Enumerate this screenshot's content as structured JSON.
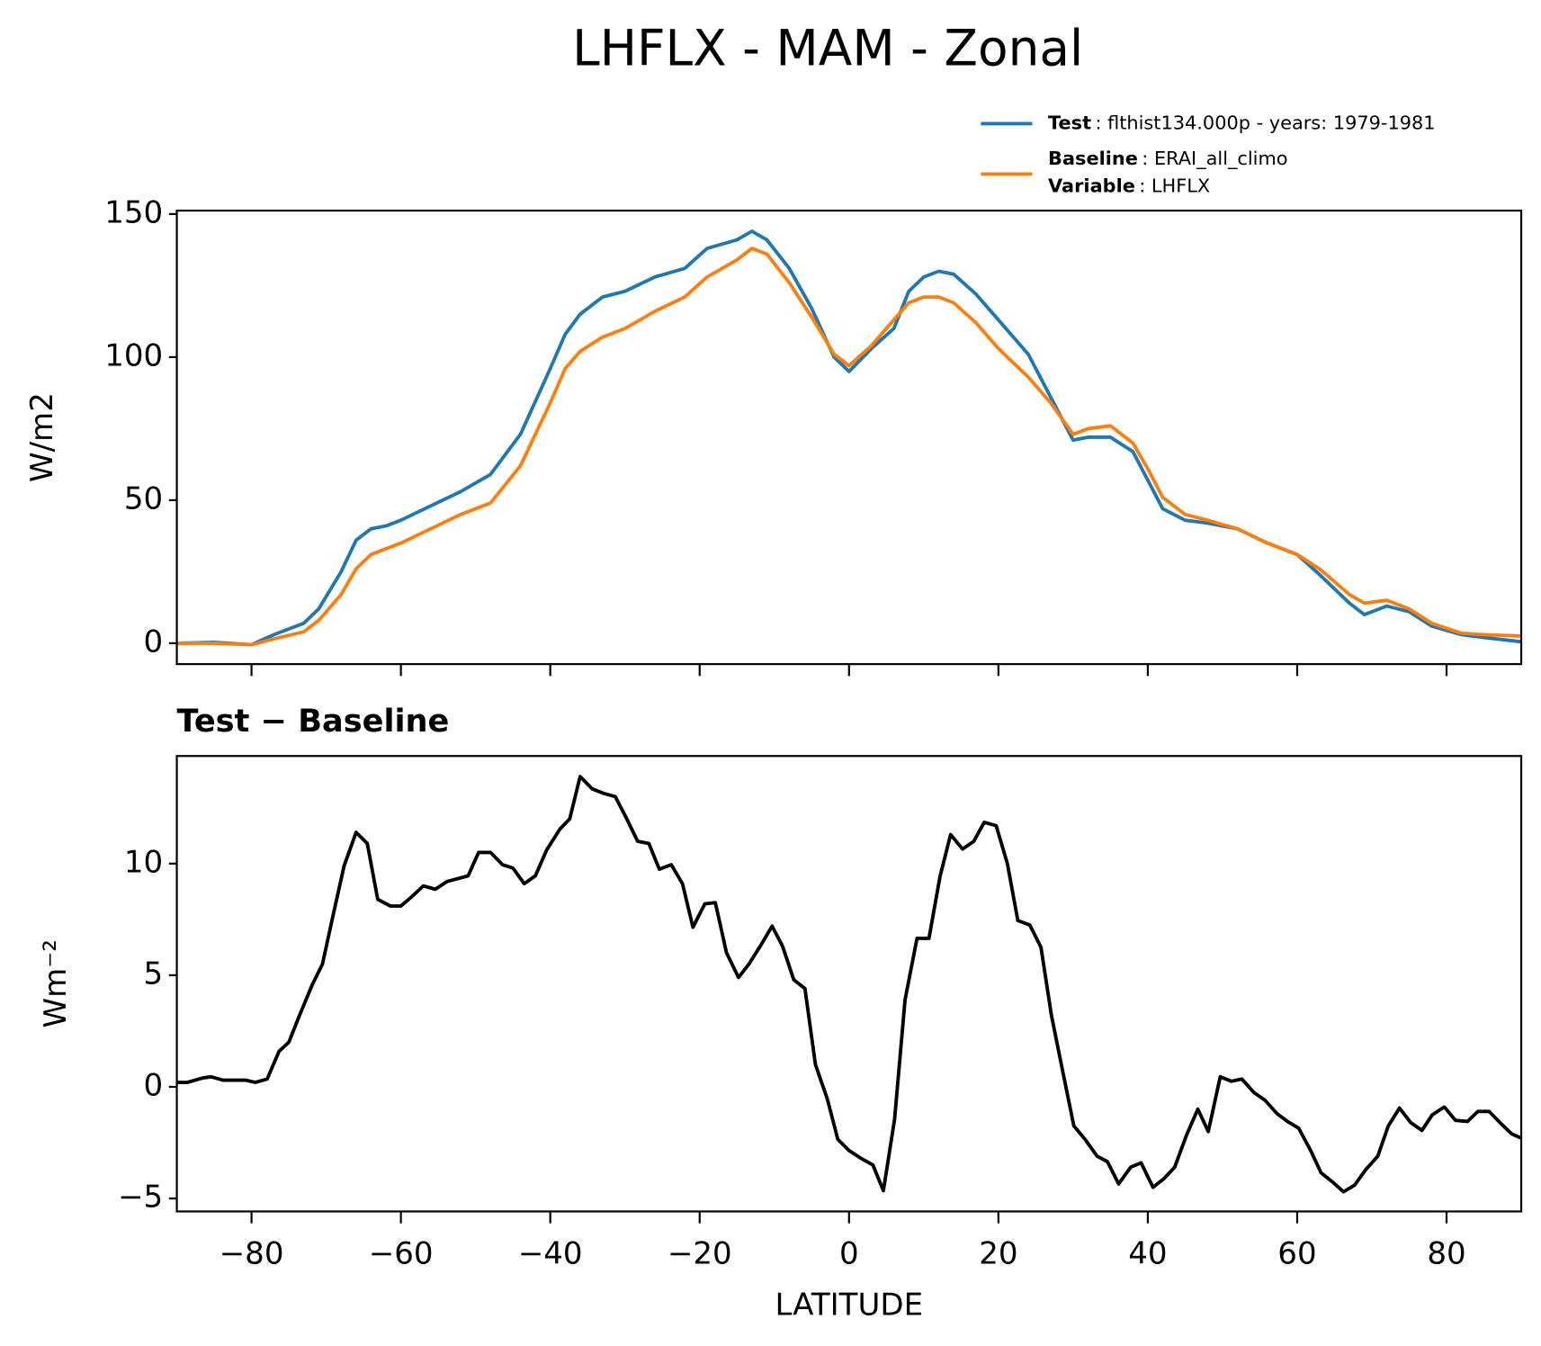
{
  "title": "LHFLX - MAM - Zonal",
  "chart_data": [
    {
      "type": "line",
      "ylabel": "W/m2",
      "x": [
        -90,
        -85,
        -80,
        -77,
        -73,
        -71,
        -68,
        -66,
        -64,
        -62,
        -60,
        -56,
        -52,
        -48,
        -44,
        -40,
        -38,
        -36,
        -33,
        -30,
        -26,
        -22,
        -19,
        -15,
        -13,
        -11,
        -8,
        -5,
        -2,
        0,
        3,
        6,
        8,
        10,
        12,
        14,
        17,
        20,
        24,
        27,
        30,
        32,
        35,
        38,
        40,
        42,
        45,
        48,
        52,
        56,
        60,
        63,
        67,
        69,
        72,
        75,
        78,
        82,
        85,
        90
      ],
      "series": [
        {
          "name": "Test",
          "description": ": flthist134.000p - years: 1979-1981",
          "color": "#1f77b4",
          "values": [
            0,
            0.3,
            -0.5,
            3,
            7,
            12,
            25,
            36,
            40,
            41,
            43,
            48,
            53,
            59,
            73,
            96,
            108,
            115,
            121,
            123,
            128,
            131,
            138,
            141,
            144,
            141,
            131,
            117,
            100,
            95,
            103,
            110,
            123,
            128,
            130,
            129,
            122,
            113,
            101,
            86,
            71,
            72,
            72,
            67,
            57,
            47,
            43,
            42,
            40,
            35,
            31,
            24,
            14,
            10,
            13,
            11,
            6,
            3,
            2,
            0.5
          ]
        },
        {
          "name": "Baseline",
          "description": ": ERAI_all_climo",
          "color": "#ff7f0e",
          "values": [
            0,
            0,
            -0.5,
            1.5,
            4,
            8,
            17,
            26,
            31,
            33,
            35,
            40,
            45,
            49,
            62,
            84,
            96,
            102,
            107,
            110,
            116,
            121,
            128,
            134,
            138,
            136,
            126,
            114,
            101,
            97,
            104,
            113,
            119,
            121,
            121,
            119,
            112,
            103,
            93,
            84,
            73,
            75,
            76,
            70,
            61,
            51,
            45,
            43,
            40,
            35,
            31,
            26,
            17,
            14,
            15,
            12,
            7,
            3.5,
            3,
            2.5
          ]
        }
      ],
      "variable": {
        "name": "Variable",
        "description": ": LHFLX"
      },
      "xlim": [
        -90,
        90
      ],
      "xticks": [
        -80,
        -60,
        -40,
        -20,
        0,
        20,
        40,
        60,
        80
      ],
      "ylim": [
        -7.3,
        151.2
      ],
      "yticks": [
        0,
        50,
        100,
        150
      ]
    },
    {
      "type": "line",
      "title": "Test − Baseline",
      "ylabel": "Wm⁻²",
      "xlabel": "LATITUDE",
      "x": [
        -90,
        -88.6,
        -86.5,
        -85.4,
        -83.8,
        -80.8,
        -79.5,
        -77.9,
        -76.3,
        -75,
        -73.7,
        -71.9,
        -70.5,
        -69,
        -67.6,
        -66,
        -64.5,
        -63.1,
        -61.4,
        -60,
        -58.6,
        -57,
        -55.4,
        -53.8,
        -51,
        -49.6,
        -48,
        -46.4,
        -45,
        -43.5,
        -42,
        -40.5,
        -38.7,
        -37.4,
        -36,
        -34.4,
        -32.9,
        -31.3,
        -29.9,
        -28.3,
        -26.8,
        -25.4,
        -23.8,
        -22.3,
        -20.9,
        -19.3,
        -17.9,
        -16.4,
        -14.8,
        -13.4,
        -11.8,
        -10.3,
        -8.9,
        -7.4,
        -5.9,
        -4.5,
        -2.9,
        -1.5,
        0,
        1.6,
        3.2,
        4.6,
        6.1,
        7.5,
        9.1,
        10.7,
        12.2,
        13.6,
        15.2,
        16.7,
        18.1,
        19.7,
        21.2,
        22.6,
        24.2,
        25.7,
        27.1,
        28.7,
        30.1,
        31.6,
        33.2,
        34.6,
        36.1,
        37.7,
        39.1,
        40.7,
        42.2,
        43.6,
        45.2,
        46.7,
        48.1,
        49.7,
        51.2,
        52.6,
        54.2,
        55.7,
        57.3,
        58.7,
        60.2,
        61.8,
        63.2,
        64.7,
        66.2,
        67.7,
        69.2,
        70.8,
        72.2,
        73.7,
        75.2,
        76.7,
        78.1,
        79.7,
        81.2,
        82.8,
        84.2,
        85.7,
        87.3,
        88.7,
        90
      ],
      "series": [
        {
          "name": "Test − Baseline",
          "color": "#000000",
          "values": [
            0.2,
            0.2,
            0.4,
            0.45,
            0.3,
            0.3,
            0.2,
            0.35,
            1.6,
            2.0,
            3.1,
            4.55,
            5.5,
            7.8,
            9.9,
            11.4,
            10.9,
            8.4,
            8.1,
            8.1,
            8.5,
            9.0,
            8.85,
            9.2,
            9.45,
            10.5,
            10.5,
            9.95,
            9.8,
            9.1,
            9.45,
            10.6,
            11.55,
            12.0,
            13.9,
            13.35,
            13.15,
            13.0,
            12.1,
            11.0,
            10.9,
            9.75,
            9.95,
            9.1,
            7.15,
            8.2,
            8.25,
            6.0,
            4.9,
            5.5,
            6.35,
            7.2,
            6.3,
            4.8,
            4.4,
            1.0,
            -0.55,
            -2.35,
            -2.85,
            -3.2,
            -3.5,
            -4.65,
            -1.45,
            3.9,
            6.65,
            6.65,
            9.45,
            11.3,
            10.65,
            11.0,
            11.85,
            11.7,
            10.0,
            7.45,
            7.25,
            6.25,
            3.2,
            0.55,
            -1.75,
            -2.35,
            -3.1,
            -3.35,
            -4.35,
            -3.6,
            -3.4,
            -4.5,
            -4.1,
            -3.6,
            -2.15,
            -1.0,
            -2.0,
            0.45,
            0.25,
            0.35,
            -0.25,
            -0.6,
            -1.2,
            -1.55,
            -1.85,
            -2.85,
            -3.85,
            -4.25,
            -4.7,
            -4.4,
            -3.7,
            -3.1,
            -1.75,
            -0.95,
            -1.6,
            -1.95,
            -1.25,
            -0.9,
            -1.5,
            -1.55,
            -1.1,
            -1.1,
            -1.65,
            -2.1,
            -2.3
          ]
        }
      ],
      "xlim": [
        -90,
        90
      ],
      "xticks": [
        {
          "value": -80,
          "label": "−80"
        },
        {
          "value": -60,
          "label": "−60"
        },
        {
          "value": -40,
          "label": "−40"
        },
        {
          "value": -20,
          "label": "−20"
        },
        0,
        20,
        40,
        60,
        80
      ],
      "ylim": [
        -5.58,
        14.82
      ],
      "yticks": [
        {
          "value": -5,
          "label": "−5"
        },
        0,
        5,
        10
      ]
    }
  ]
}
